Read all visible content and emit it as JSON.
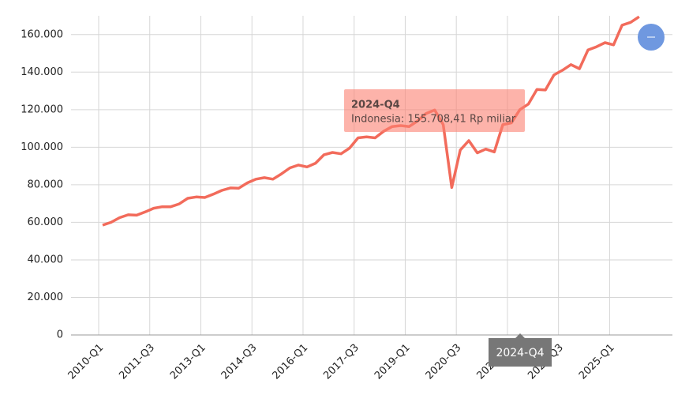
{
  "chart_data": {
    "type": "line",
    "categories": [
      "2010-Q1",
      "2010-Q2",
      "2010-Q3",
      "2010-Q4",
      "2011-Q1",
      "2011-Q2",
      "2011-Q3",
      "2011-Q4",
      "2012-Q1",
      "2012-Q2",
      "2012-Q3",
      "2012-Q4",
      "2013-Q1",
      "2013-Q2",
      "2013-Q3",
      "2013-Q4",
      "2014-Q1",
      "2014-Q2",
      "2014-Q3",
      "2014-Q4",
      "2015-Q1",
      "2015-Q2",
      "2015-Q3",
      "2015-Q4",
      "2016-Q1",
      "2016-Q2",
      "2016-Q3",
      "2016-Q4",
      "2017-Q1",
      "2017-Q2",
      "2017-Q3",
      "2017-Q4",
      "2018-Q1",
      "2018-Q2",
      "2018-Q3",
      "2018-Q4",
      "2019-Q1",
      "2019-Q2",
      "2019-Q3",
      "2019-Q4",
      "2020-Q1",
      "2020-Q2",
      "2020-Q3",
      "2020-Q4",
      "2021-Q1",
      "2021-Q2",
      "2021-Q3",
      "2021-Q4",
      "2022-Q1",
      "2022-Q2",
      "2022-Q3",
      "2022-Q4",
      "2023-Q1",
      "2023-Q2",
      "2023-Q3",
      "2023-Q4",
      "2024-Q1",
      "2024-Q2",
      "2024-Q3",
      "2024-Q4",
      "2025-Q1",
      "2025-Q2",
      "2025-Q3",
      "2025-Q4"
    ],
    "series": [
      {
        "name": "Indonesia",
        "color": "#f26b5b",
        "values": [
          58500,
          60000,
          62500,
          64000,
          63800,
          65500,
          67500,
          68300,
          68300,
          69800,
          72800,
          73500,
          73200,
          75000,
          77000,
          78300,
          78200,
          81000,
          83000,
          83800,
          83000,
          85800,
          89000,
          90500,
          89500,
          91500,
          96000,
          97200,
          96500,
          99500,
          105000,
          105500,
          105000,
          108500,
          111000,
          111500,
          111000,
          114000,
          118000,
          119800,
          112000,
          78500,
          98500,
          103500,
          97000,
          99000,
          97500,
          112000,
          113000,
          120000,
          123000,
          130800,
          130500,
          138500,
          141000,
          144000,
          141800,
          151800,
          153500,
          155708.41,
          154500,
          165000,
          166500,
          169500
        ]
      }
    ],
    "ylim": [
      0,
      170000
    ],
    "yticks": [
      0,
      {
        "value": 20000,
        "label": "20.000"
      },
      {
        "value": 40000,
        "label": "40.000"
      },
      {
        "value": 60000,
        "label": "60.000"
      },
      {
        "value": 80000,
        "label": "80.000"
      },
      {
        "value": 100000,
        "label": "100.000"
      },
      {
        "value": 120000,
        "label": "120.000"
      },
      {
        "value": 140000,
        "label": "140.000"
      },
      {
        "value": 160000,
        "label": "160.000"
      }
    ],
    "grid": true,
    "tooltip": {
      "title": "2024-Q4",
      "label": "Indonesia: 155.708,41 Rp miliar"
    },
    "hover_label": "2024-Q4"
  }
}
